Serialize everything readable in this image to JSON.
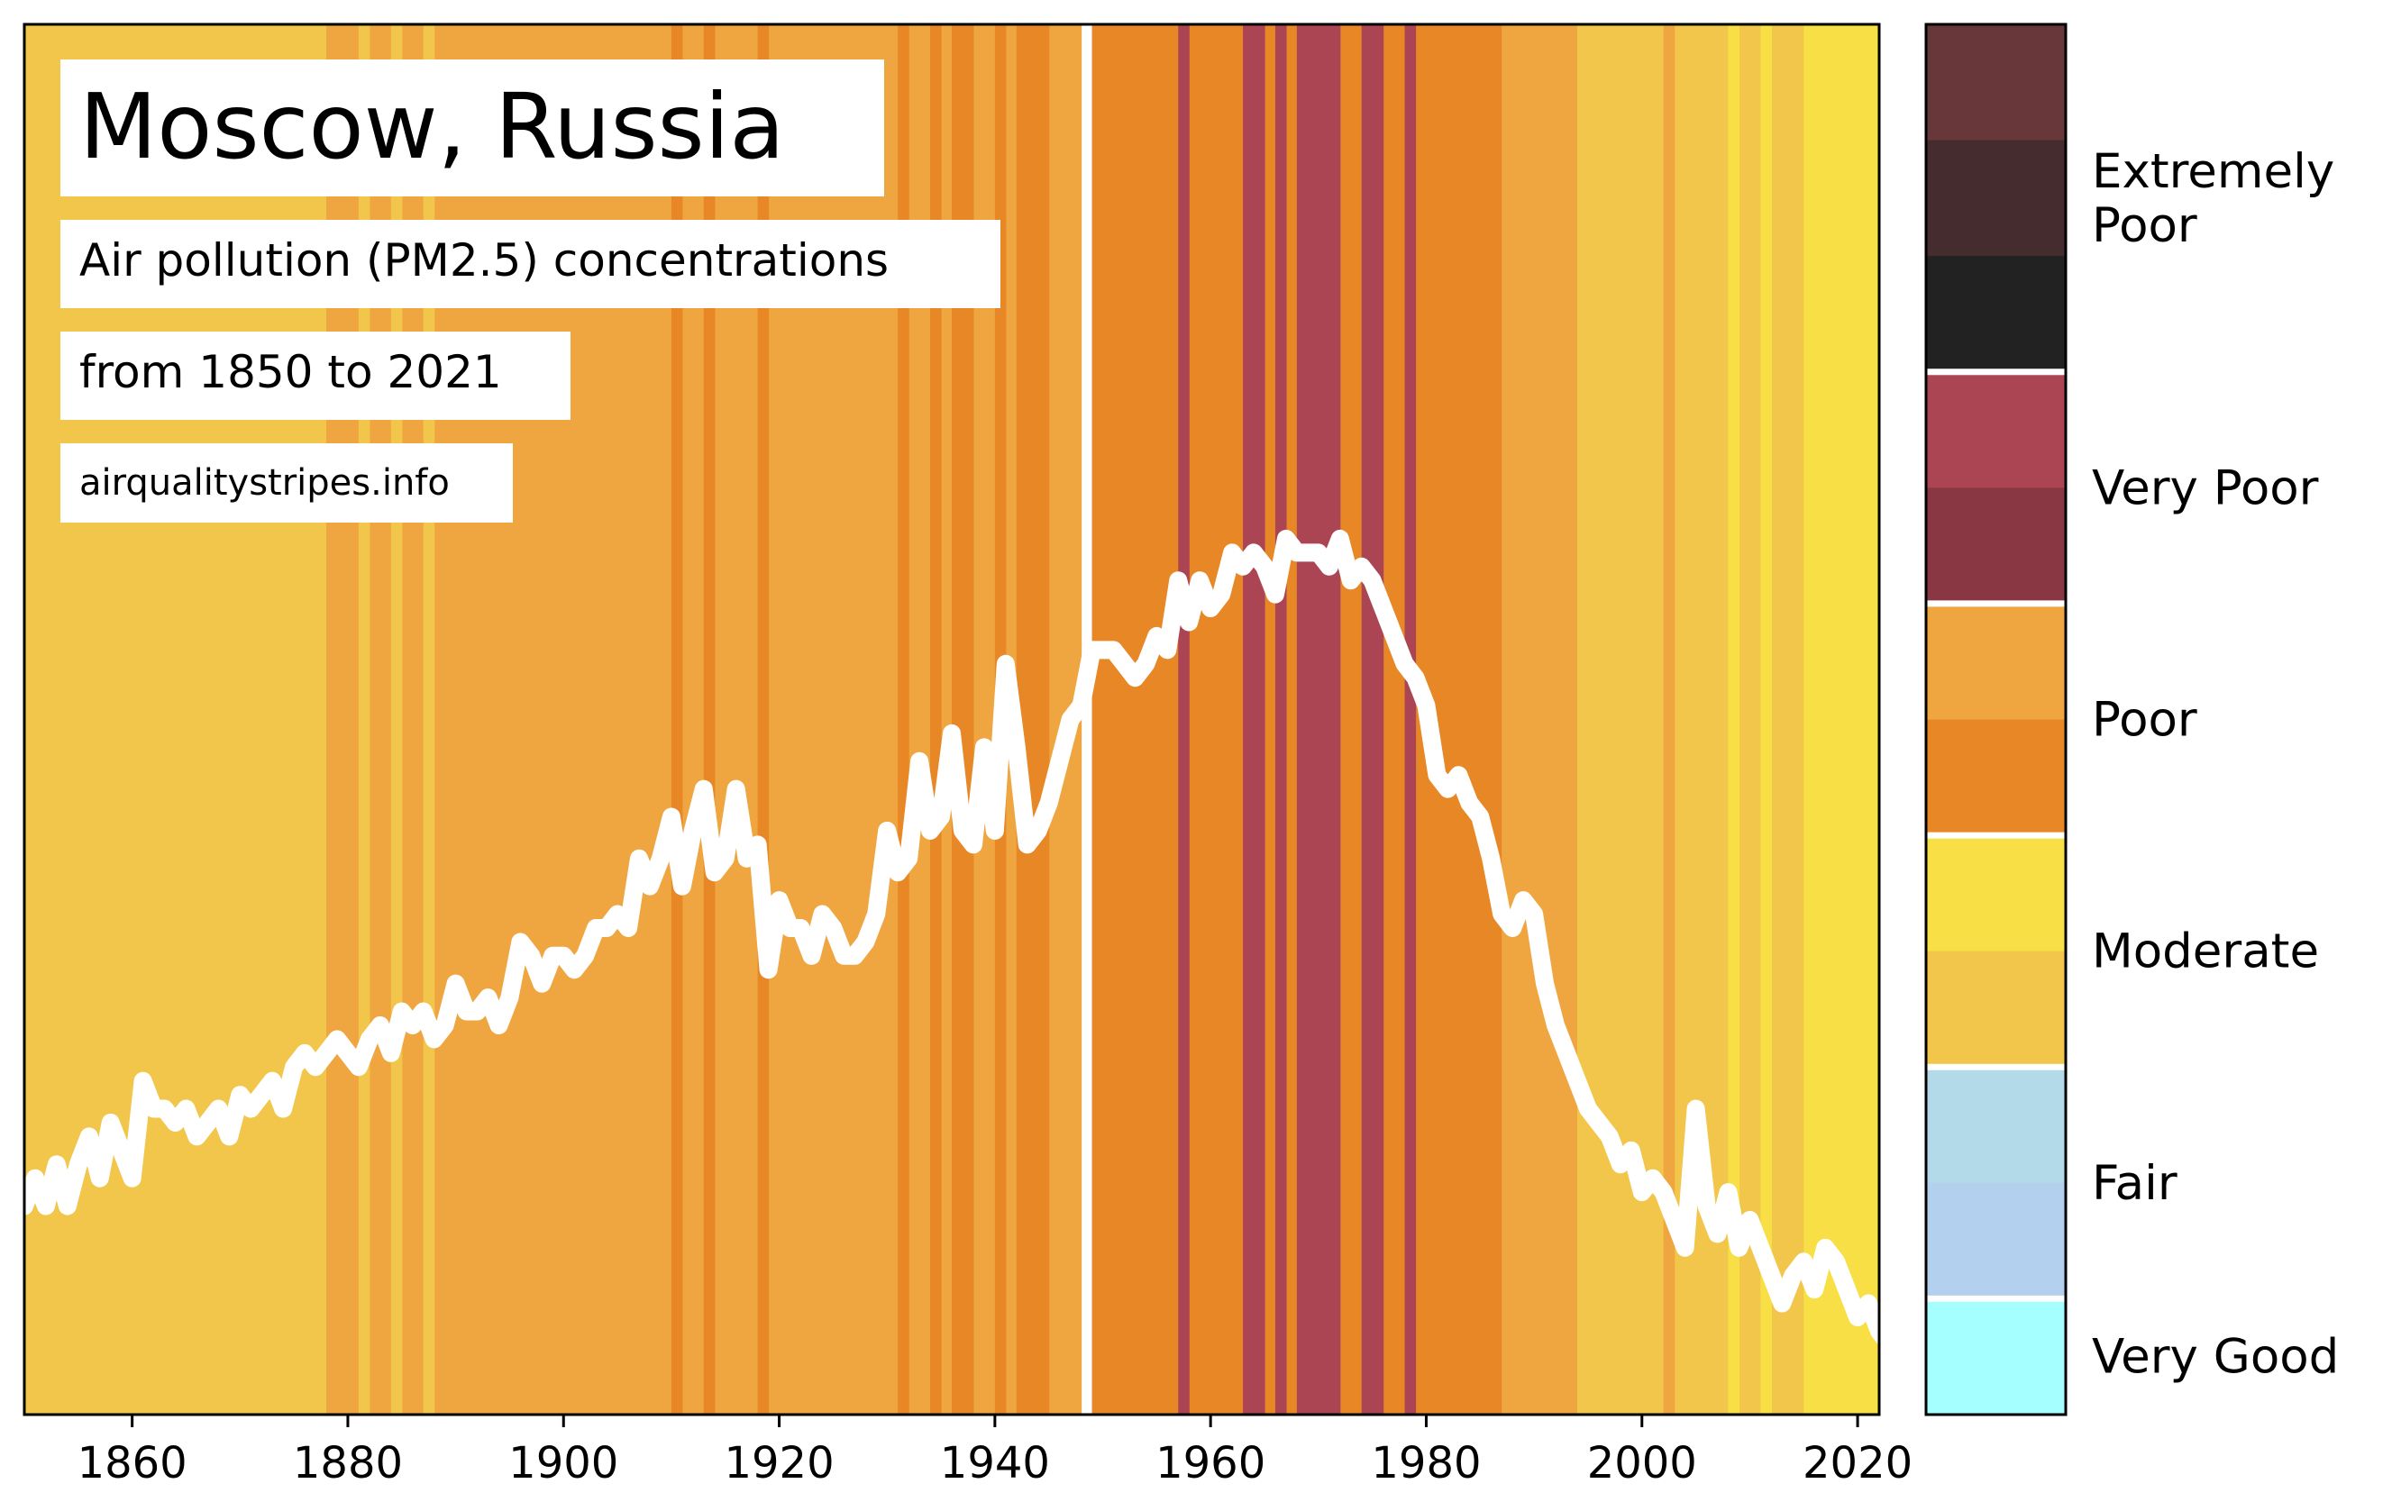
{
  "chart_data": {
    "type": "area",
    "title": "Moscow, Russia",
    "subtitle_lines": [
      "Air pollution (PM2.5) concentrations",
      "from 1850 to 2021"
    ],
    "source": "airqualitystripes.info",
    "x_range": [
      1850,
      2021
    ],
    "xlim": [
      1850,
      2022
    ],
    "x_ticks": [
      1860,
      1880,
      1900,
      1920,
      1940,
      1960,
      1980,
      2000,
      2020
    ],
    "grid": false,
    "colors": {
      "very_good": "#a6ffff",
      "fair_light": "#b2dae8",
      "fair_dark": "#b3d0ee",
      "moderate_light": "#f7df45",
      "moderate_dark": "#f1c64a",
      "poor_light": "#efa641",
      "poor_dark": "#e88726",
      "very_poor_light": "#ac4553",
      "very_poor_dark": "#893843",
      "extremely_poor_1": "#68373a",
      "extremely_poor_2": "#452d2f",
      "extremely_poor_3": "#222222",
      "line": "#ffffff"
    },
    "stripes": [
      {
        "from": 1850,
        "to": 1878,
        "level": "moderate_dark"
      },
      {
        "from": 1878,
        "to": 1948,
        "level": "poor_light"
      },
      {
        "from": 1881,
        "to": 1882,
        "level": "moderate_dark"
      },
      {
        "from": 1884,
        "to": 1885,
        "level": "moderate_dark"
      },
      {
        "from": 1887,
        "to": 1888,
        "level": "moderate_dark"
      },
      {
        "from": 1910,
        "to": 1911,
        "level": "poor_dark"
      },
      {
        "from": 1913,
        "to": 1914,
        "level": "poor_dark"
      },
      {
        "from": 1918,
        "to": 1919,
        "level": "poor_dark"
      },
      {
        "from": 1931,
        "to": 1932,
        "level": "poor_dark"
      },
      {
        "from": 1934,
        "to": 1935,
        "level": "poor_dark"
      },
      {
        "from": 1936,
        "to": 1938,
        "level": "poor_dark"
      },
      {
        "from": 1940,
        "to": 1941,
        "level": "poor_dark"
      },
      {
        "from": 1942,
        "to": 1945,
        "level": "poor_dark"
      },
      {
        "from": 1949,
        "to": 1987,
        "level": "poor_dark"
      },
      {
        "from": 1957,
        "to": 1958,
        "level": "very_poor_light"
      },
      {
        "from": 1963,
        "to": 1965,
        "level": "very_poor_light"
      },
      {
        "from": 1966,
        "to": 1967,
        "level": "very_poor_light"
      },
      {
        "from": 1968,
        "to": 1972,
        "level": "very_poor_light"
      },
      {
        "from": 1974,
        "to": 1976,
        "level": "very_poor_light"
      },
      {
        "from": 1978,
        "to": 1979,
        "level": "very_poor_light"
      },
      {
        "from": 1987,
        "to": 1994,
        "level": "poor_light"
      },
      {
        "from": 1994,
        "to": 2015,
        "level": "moderate_dark"
      },
      {
        "from": 2002,
        "to": 2003,
        "level": "poor_light"
      },
      {
        "from": 2008,
        "to": 2009,
        "level": "moderate_light"
      },
      {
        "from": 2011,
        "to": 2012,
        "level": "moderate_light"
      },
      {
        "from": 2015,
        "to": 2022,
        "level": "moderate_light"
      }
    ],
    "series": [
      {
        "relative_level": [
          0.15,
          0.17,
          0.15,
          0.18,
          0.15,
          0.18,
          0.2,
          0.17,
          0.21,
          0.19,
          0.17,
          0.24,
          0.22,
          0.22,
          0.21,
          0.22,
          0.2,
          0.21,
          0.22,
          0.2,
          0.23,
          0.22,
          0.23,
          0.24,
          0.22,
          0.25,
          0.26,
          0.25,
          0.26,
          0.27,
          0.26,
          0.25,
          0.27,
          0.28,
          0.26,
          0.29,
          0.28,
          0.29,
          0.27,
          0.28,
          0.31,
          0.29,
          0.29,
          0.3,
          0.28,
          0.3,
          0.34,
          0.33,
          0.31,
          0.33,
          0.33,
          0.32,
          0.33,
          0.35,
          0.35,
          0.36,
          0.35,
          0.4,
          0.38,
          0.4,
          0.43,
          0.38,
          0.42,
          0.45,
          0.39,
          0.4,
          0.45,
          0.4,
          0.41,
          0.32,
          0.37,
          0.35,
          0.35,
          0.33,
          0.36,
          0.35,
          0.33,
          0.33,
          0.34,
          0.36,
          0.42,
          0.39,
          0.4,
          0.47,
          0.42,
          0.43,
          0.49,
          0.42,
          0.41,
          0.48,
          0.42,
          0.54,
          0.48,
          0.41,
          0.42,
          0.44,
          0.47,
          0.5,
          0.51,
          0.55,
          0.55,
          0.55,
          0.54,
          0.53,
          0.54,
          0.56,
          0.55,
          0.6,
          0.57,
          0.6,
          0.58,
          0.59,
          0.62,
          0.61,
          0.62,
          0.61,
          0.59,
          0.63,
          0.62,
          0.62,
          0.62,
          0.61,
          0.63,
          0.6,
          0.61,
          0.6,
          0.58,
          0.56,
          0.54,
          0.53,
          0.51,
          0.46,
          0.45,
          0.46,
          0.44,
          0.43,
          0.4,
          0.36,
          0.35,
          0.37,
          0.36,
          0.31,
          0.28,
          0.26,
          0.24,
          0.22,
          0.21,
          0.2,
          0.18,
          0.19,
          0.16,
          0.17,
          0.16,
          0.14,
          0.12,
          0.22,
          0.15,
          0.13,
          0.16,
          0.12,
          0.14,
          0.12,
          0.1,
          0.08,
          0.1,
          0.11,
          0.09,
          0.12,
          0.11,
          0.09,
          0.07,
          0.08,
          0.06,
          0.05,
          0.06,
          0.05,
          0.04,
          0.05,
          0.07
        ]
      }
    ],
    "legend": [
      {
        "label": "Very Good",
        "level": "very_good"
      },
      {
        "label": "Fair",
        "levels": [
          "fair_dark",
          "fair_light"
        ]
      },
      {
        "label": "Moderate",
        "levels": [
          "moderate_dark",
          "moderate_light"
        ]
      },
      {
        "label": "Poor",
        "levels": [
          "poor_dark",
          "poor_light"
        ]
      },
      {
        "label": "Very Poor",
        "levels": [
          "very_poor_dark",
          "very_poor_light"
        ]
      },
      {
        "label": "Extremely Poor",
        "levels": [
          "extremely_poor_3",
          "extremely_poor_2",
          "extremely_poor_1"
        ]
      }
    ],
    "legend_position": "right"
  }
}
